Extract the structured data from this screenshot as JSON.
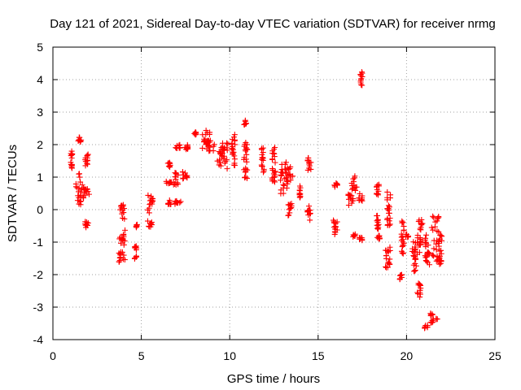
{
  "chart_data": {
    "type": "scatter",
    "title": "Day 121 of 2021, Sidereal Day-to-day VTEC variation (SDTVAR) for receiver nrmg",
    "xlabel": "GPS time / hours",
    "ylabel": "SDTVAR / TECUs",
    "xlim": [
      0,
      25
    ],
    "ylim": [
      -4,
      5
    ],
    "xticks": [
      0,
      5,
      10,
      15,
      20,
      25
    ],
    "yticks": [
      -4,
      -3,
      -2,
      -1,
      0,
      1,
      2,
      3,
      4,
      5
    ],
    "grid": true,
    "marker": "+",
    "color": "#ff0000",
    "clusters": [
      {
        "x": [
          1.0,
          1.1
        ],
        "y": [
          1.15,
          1.8
        ]
      },
      {
        "x": [
          1.4,
          1.6
        ],
        "y": [
          2.05,
          2.25
        ]
      },
      {
        "x": [
          1.3,
          1.7
        ],
        "y": [
          0.15,
          1.15
        ]
      },
      {
        "x": [
          1.7,
          2.05
        ],
        "y": [
          0.25,
          0.7
        ]
      },
      {
        "x": [
          1.75,
          2.05
        ],
        "y": [
          1.35,
          1.7
        ]
      },
      {
        "x": [
          1.8,
          2.0
        ],
        "y": [
          -0.55,
          -0.35
        ]
      },
      {
        "x": [
          3.7,
          4.1
        ],
        "y": [
          -1.65,
          -1.3
        ]
      },
      {
        "x": [
          3.75,
          4.1
        ],
        "y": [
          -1.1,
          -0.6
        ]
      },
      {
        "x": [
          3.8,
          4.05
        ],
        "y": [
          -0.3,
          0.15
        ]
      },
      {
        "x": [
          4.6,
          4.75
        ],
        "y": [
          -1.55,
          -1.1
        ]
      },
      {
        "x": [
          4.7,
          4.8
        ],
        "y": [
          -0.55,
          -0.45
        ]
      },
      {
        "x": [
          5.35,
          5.65
        ],
        "y": [
          -0.55,
          -0.35
        ]
      },
      {
        "x": [
          5.35,
          5.65
        ],
        "y": [
          -0.1,
          0.45
        ]
      },
      {
        "x": [
          6.4,
          6.7
        ],
        "y": [
          0.8,
          0.9
        ]
      },
      {
        "x": [
          6.5,
          6.65
        ],
        "y": [
          1.3,
          1.45
        ]
      },
      {
        "x": [
          6.5,
          6.7
        ],
        "y": [
          0.15,
          0.3
        ]
      },
      {
        "x": [
          6.9,
          7.3
        ],
        "y": [
          0.15,
          0.3
        ]
      },
      {
        "x": [
          6.8,
          7.1
        ],
        "y": [
          0.75,
          1.15
        ]
      },
      {
        "x": [
          6.9,
          7.2
        ],
        "y": [
          1.8,
          2.0
        ]
      },
      {
        "x": [
          7.3,
          7.6
        ],
        "y": [
          0.95,
          1.2
        ]
      },
      {
        "x": [
          7.4,
          7.7
        ],
        "y": [
          1.85,
          2.0
        ]
      },
      {
        "x": [
          8.0,
          8.1
        ],
        "y": [
          2.3,
          2.4
        ]
      },
      {
        "x": [
          8.4,
          9.2
        ],
        "y": [
          1.8,
          2.45
        ]
      },
      {
        "x": [
          8.5,
          8.9
        ],
        "y": [
          1.95,
          2.15
        ]
      },
      {
        "x": [
          9.3,
          9.9
        ],
        "y": [
          1.25,
          2.05
        ]
      },
      {
        "x": [
          9.4,
          9.7
        ],
        "y": [
          1.6,
          1.95
        ]
      },
      {
        "x": [
          10.1,
          10.3
        ],
        "y": [
          1.3,
          2.4
        ]
      },
      {
        "x": [
          10.8,
          10.95
        ],
        "y": [
          2.6,
          2.75
        ]
      },
      {
        "x": [
          10.8,
          11.0
        ],
        "y": [
          0.95,
          2.2
        ]
      },
      {
        "x": [
          11.8,
          11.95
        ],
        "y": [
          1.1,
          1.95
        ]
      },
      {
        "x": [
          12.4,
          12.6
        ],
        "y": [
          0.85,
          2.05
        ]
      },
      {
        "x": [
          12.8,
          13.3
        ],
        "y": [
          0.45,
          1.5
        ]
      },
      {
        "x": [
          13.1,
          13.6
        ],
        "y": [
          0.9,
          1.35
        ]
      },
      {
        "x": [
          13.3,
          13.5
        ],
        "y": [
          -0.2,
          0.2
        ]
      },
      {
        "x": [
          13.9,
          14.0
        ],
        "y": [
          0.35,
          0.75
        ]
      },
      {
        "x": [
          14.4,
          14.6
        ],
        "y": [
          1.2,
          1.6
        ]
      },
      {
        "x": [
          14.4,
          14.6
        ],
        "y": [
          -0.35,
          0.15
        ]
      },
      {
        "x": [
          15.8,
          16.1
        ],
        "y": [
          -0.8,
          -0.3
        ]
      },
      {
        "x": [
          15.9,
          16.1
        ],
        "y": [
          0.7,
          0.85
        ]
      },
      {
        "x": [
          16.7,
          17.0
        ],
        "y": [
          0.1,
          0.5
        ]
      },
      {
        "x": [
          16.9,
          17.2
        ],
        "y": [
          0.55,
          1.05
        ]
      },
      {
        "x": [
          16.95,
          17.1
        ],
        "y": [
          -0.85,
          -0.75
        ]
      },
      {
        "x": [
          17.35,
          17.5
        ],
        "y": [
          3.8,
          4.3
        ]
      },
      {
        "x": [
          17.3,
          17.5
        ],
        "y": [
          -0.95,
          -0.85
        ]
      },
      {
        "x": [
          17.3,
          17.5
        ],
        "y": [
          0.2,
          0.5
        ]
      },
      {
        "x": [
          18.3,
          18.45
        ],
        "y": [
          0.45,
          0.85
        ]
      },
      {
        "x": [
          18.3,
          18.45
        ],
        "y": [
          -0.6,
          -0.15
        ]
      },
      {
        "x": [
          18.3,
          18.5
        ],
        "y": [
          -0.9,
          -0.8
        ]
      },
      {
        "x": [
          18.8,
          19.1
        ],
        "y": [
          -1.8,
          -1.1
        ]
      },
      {
        "x": [
          18.9,
          19.1
        ],
        "y": [
          -0.5,
          0.6
        ]
      },
      {
        "x": [
          19.6,
          19.75
        ],
        "y": [
          -2.15,
          -2.0
        ]
      },
      {
        "x": [
          19.7,
          19.85
        ],
        "y": [
          -1.45,
          -0.35
        ]
      },
      {
        "x": [
          19.95,
          20.1
        ],
        "y": [
          -0.85,
          -0.75
        ]
      },
      {
        "x": [
          20.3,
          20.55
        ],
        "y": [
          -1.9,
          -0.9
        ]
      },
      {
        "x": [
          20.6,
          20.8
        ],
        "y": [
          -2.7,
          -2.2
        ]
      },
      {
        "x": [
          20.6,
          20.9
        ],
        "y": [
          -1.4,
          -0.2
        ]
      },
      {
        "x": [
          21.0,
          21.3
        ],
        "y": [
          -1.7,
          -0.7
        ]
      },
      {
        "x": [
          21.0,
          21.2
        ],
        "y": [
          -3.65,
          -3.55
        ]
      },
      {
        "x": [
          21.3,
          21.8
        ],
        "y": [
          -3.5,
          -3.15
        ]
      },
      {
        "x": [
          21.4,
          21.9
        ],
        "y": [
          -1.6,
          -0.2
        ]
      },
      {
        "x": [
          21.8,
          22.0
        ],
        "y": [
          -1.7,
          -0.75
        ]
      }
    ]
  }
}
